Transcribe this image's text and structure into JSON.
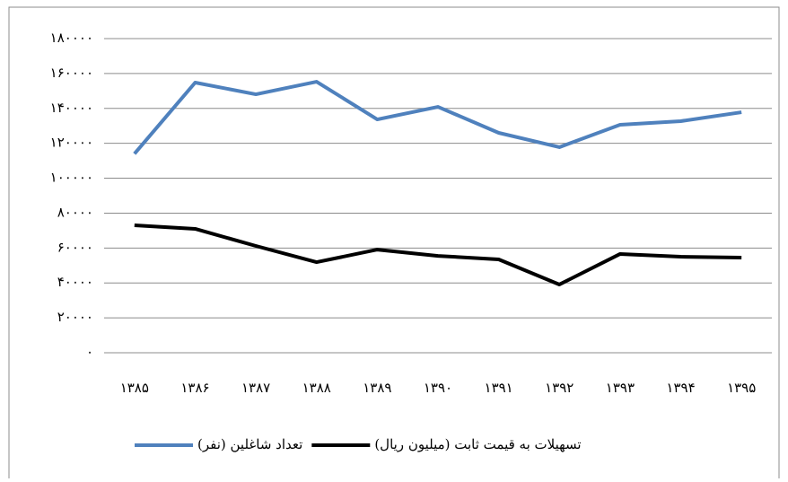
{
  "chart_data": {
    "type": "line",
    "categories": [
      "۱۳۸۵",
      "۱۳۸۶",
      "۱۳۸۷",
      "۱۳۸۸",
      "۱۳۸۹",
      "۱۳۹۰",
      "۱۳۹۱",
      "۱۳۹۲",
      "۱۳۹۳",
      "۱۳۹۴",
      "۱۳۹۵"
    ],
    "series": [
      {
        "name": "تعداد شاغلین (نفر)",
        "color": "#4f81bd",
        "values": [
          114000,
          154800,
          148100,
          155300,
          133700,
          140900,
          126000,
          117800,
          130600,
          132700,
          137800
        ]
      },
      {
        "name": "تسهیلات به قیمت ثابت (میلیون ریال)",
        "color": "#000000",
        "values": [
          73000,
          71000,
          61200,
          51900,
          59100,
          55500,
          53500,
          39100,
          56600,
          55000,
          54500
        ]
      }
    ],
    "ylim": [
      0,
      180000
    ],
    "yticks": [
      {
        "value": 0,
        "label": "۰"
      },
      {
        "value": 20000,
        "label": "۲۰۰۰۰"
      },
      {
        "value": 40000,
        "label": "۴۰۰۰۰"
      },
      {
        "value": 60000,
        "label": "۶۰۰۰۰"
      },
      {
        "value": 80000,
        "label": "۸۰۰۰۰"
      },
      {
        "value": 100000,
        "label": "۱۰۰۰۰۰"
      },
      {
        "value": 120000,
        "label": "۱۲۰۰۰۰"
      },
      {
        "value": 140000,
        "label": "۱۴۰۰۰۰"
      },
      {
        "value": 160000,
        "label": "۱۶۰۰۰۰"
      },
      {
        "value": 180000,
        "label": "۱۸۰۰۰۰"
      }
    ],
    "grid": true,
    "legend": "bottom"
  }
}
